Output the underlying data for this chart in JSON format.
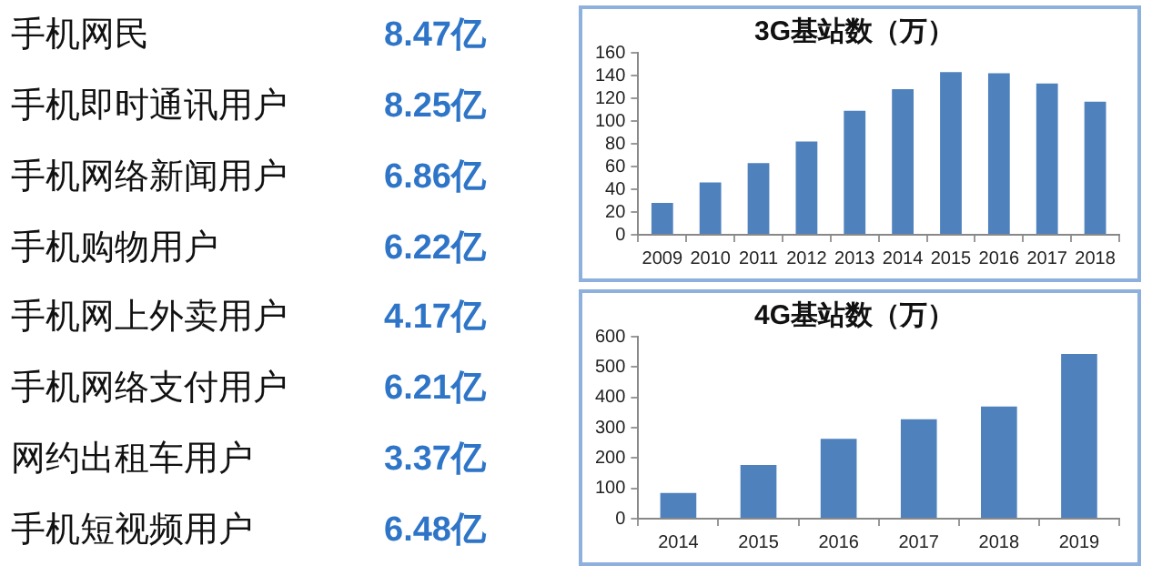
{
  "chart_data": [
    {
      "type": "other",
      "annotations": [
        "手机网民",
        "8.47亿",
        "手机即时通讯用户",
        "8.25亿",
        "手机网络新闻用户",
        "6.86亿",
        "手机购物用户",
        "6.22亿",
        "手机网上外卖用户",
        "4.17亿",
        "手机网络支付用户",
        "6.21亿",
        "网约出租车用户",
        "3.37亿",
        "手机短视频用户",
        "6.48亿"
      ]
    },
    {
      "type": "bar",
      "title": "3G基站数（万）",
      "categories": [
        "2009",
        "2010",
        "2011",
        "2012",
        "2013",
        "2014",
        "2015",
        "2016",
        "2017",
        "2018"
      ],
      "values": [
        28,
        46,
        63,
        82,
        109,
        128,
        143,
        142,
        133,
        117
      ],
      "color": "#4f81bd",
      "ylim": [
        0,
        160
      ],
      "yticks": [
        0,
        20,
        40,
        60,
        80,
        100,
        120,
        140,
        160
      ],
      "grid": false,
      "legend": false
    },
    {
      "type": "bar",
      "title": "4G基站数（万）",
      "categories": [
        "2014",
        "2015",
        "2016",
        "2017",
        "2018",
        "2019"
      ],
      "values": [
        85,
        177,
        263,
        328,
        370,
        543
      ],
      "color": "#4f81bd",
      "ylim": [
        0,
        600
      ],
      "yticks": [
        0,
        100,
        200,
        300,
        400,
        500,
        600
      ],
      "grid": false,
      "legend": false
    }
  ]
}
